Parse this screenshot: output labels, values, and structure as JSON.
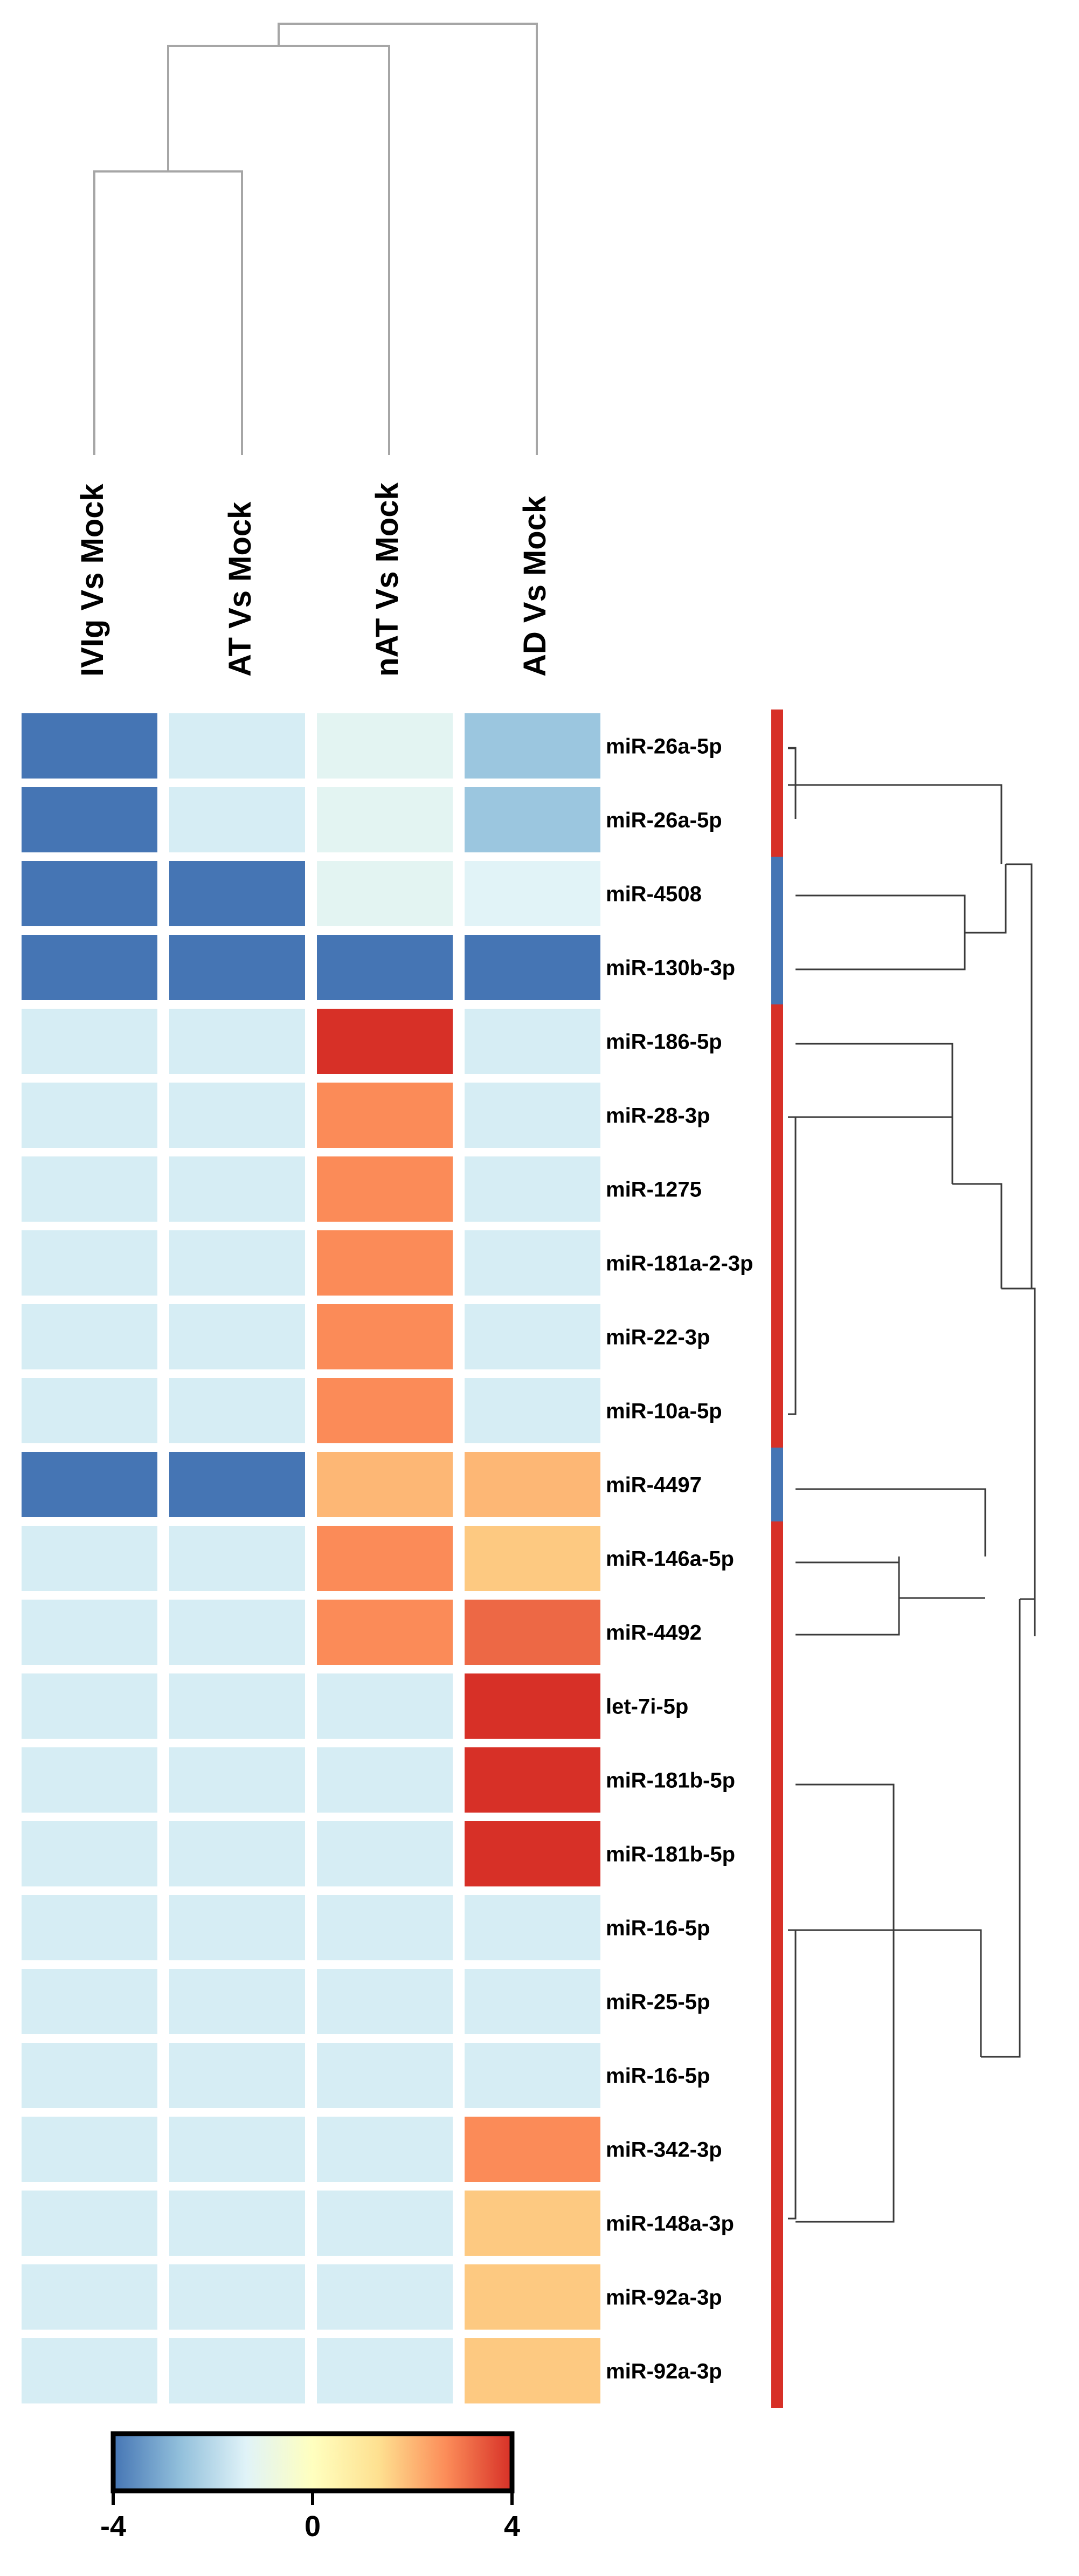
{
  "chart_data": {
    "type": "heatmap",
    "title": "",
    "columns": [
      "IVIg Vs Mock",
      "AT Vs Mock",
      "nAT Vs Mock",
      "AD Vs Mock"
    ],
    "rows": [
      "miR-26a-5p",
      "miR-26a-5p",
      "miR-4508",
      "miR-130b-3p",
      "miR-186-5p",
      "miR-28-3p",
      "miR-1275",
      "miR-181a-2-3p",
      "miR-22-3p",
      "miR-10a-5p",
      "miR-4497",
      "miR-146a-5p",
      "miR-4492",
      "let-7i-5p",
      "miR-181b-5p",
      "miR-181b-5p",
      "miR-16-5p",
      "miR-25-5p",
      "miR-16-5p",
      "miR-342-3p",
      "miR-148a-3p",
      "miR-92a-3p",
      "miR-92a-3p"
    ],
    "values": [
      [
        -4,
        -1.5,
        -1.2,
        -2.5
      ],
      [
        -4,
        -1.5,
        -1.2,
        -2.5
      ],
      [
        -4,
        -4,
        -1.2,
        -1.3
      ],
      [
        -4,
        -4,
        -4,
        -4
      ],
      [
        -1.5,
        -1.5,
        4,
        -1.5
      ],
      [
        -1.5,
        -1.5,
        2.7,
        -1.5
      ],
      [
        -1.5,
        -1.5,
        2.7,
        -1.5
      ],
      [
        -1.5,
        -1.5,
        2.7,
        -1.5
      ],
      [
        -1.5,
        -1.5,
        2.7,
        -1.5
      ],
      [
        -1.5,
        -1.5,
        2.7,
        -1.5
      ],
      [
        -4,
        -4,
        2.0,
        2.0
      ],
      [
        -1.5,
        -1.5,
        2.7,
        1.7
      ],
      [
        -1.5,
        -1.5,
        2.7,
        3.2
      ],
      [
        -1.5,
        -1.5,
        -1.5,
        4
      ],
      [
        -1.5,
        -1.5,
        -1.5,
        4
      ],
      [
        -1.5,
        -1.5,
        -1.5,
        4
      ],
      [
        -1.5,
        -1.5,
        -1.5,
        -1.5
      ],
      [
        -1.5,
        -1.5,
        -1.5,
        -1.5
      ],
      [
        -1.5,
        -1.5,
        -1.5,
        -1.5
      ],
      [
        -1.5,
        -1.5,
        -1.5,
        2.7
      ],
      [
        -1.5,
        -1.5,
        -1.5,
        1.7
      ],
      [
        -1.5,
        -1.5,
        -1.5,
        1.7
      ],
      [
        -1.5,
        -1.5,
        -1.5,
        1.7
      ]
    ],
    "row_groups": [
      "up",
      "up",
      "down",
      "down",
      "up",
      "up",
      "up",
      "up",
      "up",
      "up",
      "down",
      "up",
      "up",
      "up",
      "up",
      "up",
      "up",
      "up",
      "up",
      "up",
      "up",
      "up",
      "up"
    ],
    "group_colors": {
      "up": "#d73027",
      "down": "#4575b4"
    },
    "colorbar": {
      "min": -4,
      "max": 4,
      "tick_labels": [
        "-4",
        "0",
        "4"
      ],
      "tick_values": [
        -4,
        0,
        4
      ],
      "colors": [
        "#4575b4",
        "#91bfdb",
        "#e0f3f8",
        "#ffffbf",
        "#fee090",
        "#fc8d59",
        "#d73027"
      ]
    }
  }
}
